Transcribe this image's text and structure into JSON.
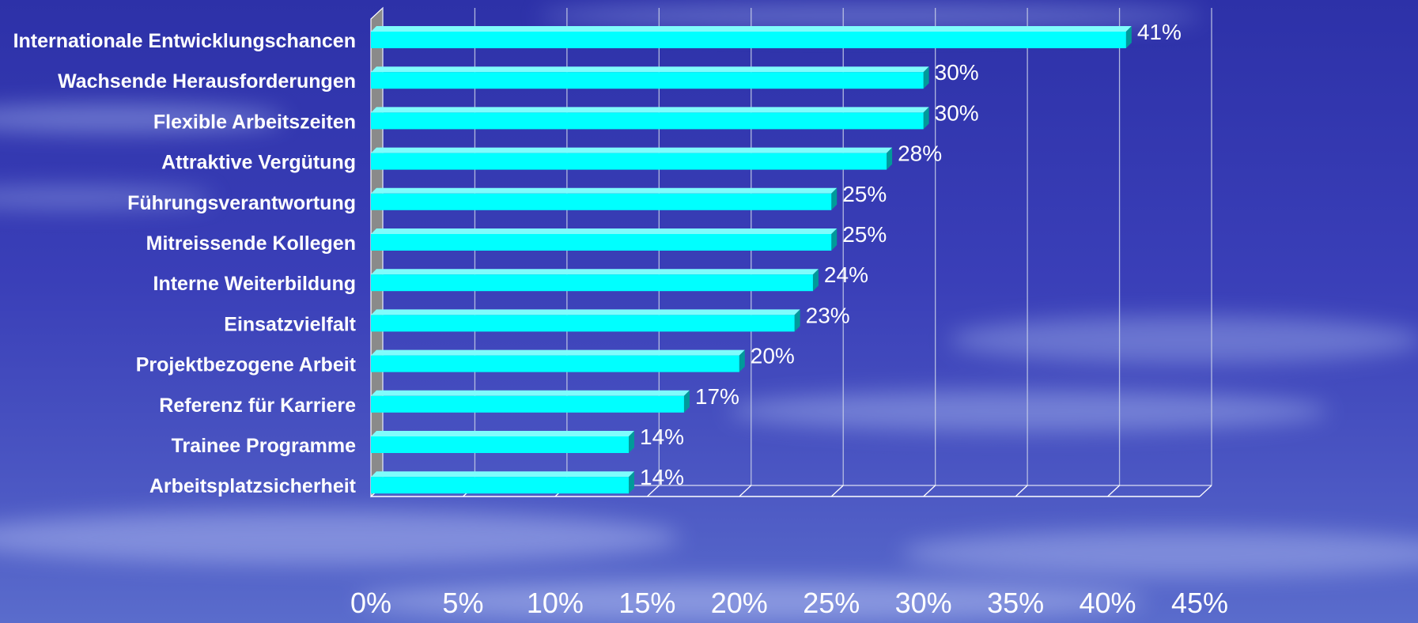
{
  "chart_data": {
    "type": "bar",
    "orientation": "horizontal",
    "title": "",
    "xlabel": "",
    "ylabel": "",
    "categories": [
      "Internationale Entwicklungschancen",
      "Wachsende Herausforderungen",
      "Flexible Arbeitszeiten",
      "Attraktive Vergütung",
      "Führungsverantwortung",
      "Mitreissende Kollegen",
      "Interne Weiterbildung",
      "Einsatzvielfalt",
      "Projektbezogene Arbeit",
      "Referenz für Karriere",
      "Trainee Programme",
      "Arbeitsplatzsicherheit"
    ],
    "values": [
      41,
      30,
      30,
      28,
      25,
      25,
      24,
      23,
      20,
      17,
      14,
      14
    ],
    "value_labels": [
      "41%",
      "30%",
      "30%",
      "28%",
      "25%",
      "25%",
      "24%",
      "23%",
      "20%",
      "17%",
      "14%",
      "14%"
    ],
    "xlim": [
      0,
      45
    ],
    "x_ticks": [
      0,
      5,
      10,
      15,
      20,
      25,
      30,
      35,
      40,
      45
    ],
    "x_tick_labels": [
      "0%",
      "5%",
      "10%",
      "15%",
      "20%",
      "25%",
      "30%",
      "35%",
      "40%",
      "45%"
    ],
    "grid": true,
    "legend": "none",
    "colors": {
      "bar_front": "#00ffff",
      "bar_top": "#7ffcfc",
      "bar_side": "#009a9a",
      "wall": "#8a8a8a",
      "gridline": "#c8d0e8",
      "text": "#ffffff",
      "background": "#3a3fb8"
    }
  }
}
